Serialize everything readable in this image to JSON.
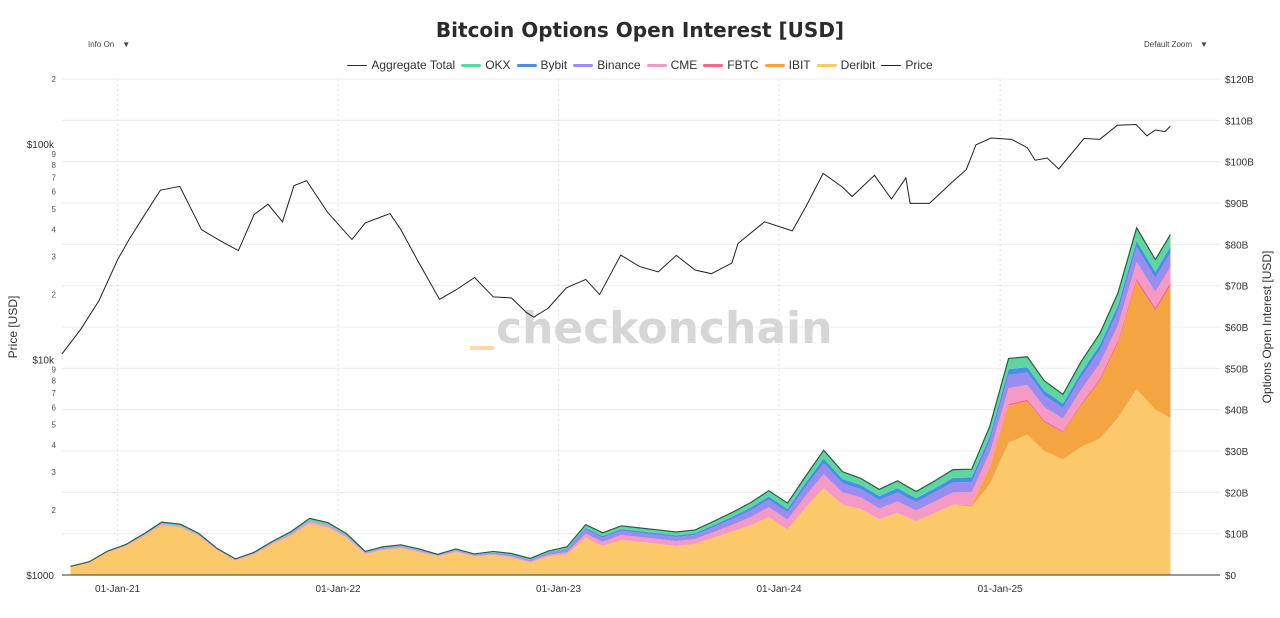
{
  "header": {
    "title": "Bitcoin Options Open Interest [USD]"
  },
  "controls": {
    "left": {
      "label": "Info On",
      "caret": "▼"
    },
    "right": {
      "label": "Default Zoom",
      "caret": "▼"
    }
  },
  "watermark": "checkonchain",
  "colors": {
    "aggregate": "#333333",
    "okx": "#5ed6a0",
    "bybit": "#4a8fe6",
    "binance": "#9b8cf0",
    "cme": "#f59ac4",
    "fbtc": "#f06a8a",
    "ibit": "#f5a442",
    "deribit": "#fcc96a",
    "price": "#222222"
  },
  "chart_data": {
    "type": "area",
    "title": "Bitcoin Options Open Interest [USD]",
    "ylabel_left": "Price [USD]",
    "ylabel_right": "Options Open Interest [USD]",
    "left_axis": {
      "scale": "log",
      "range": [
        1000,
        200000
      ],
      "major_ticks": [
        {
          "value": 1000,
          "label": "$1000"
        },
        {
          "value": 10000,
          "label": "$10k"
        },
        {
          "value": 100000,
          "label": "$100k"
        }
      ],
      "minor_ticks": [
        {
          "value": 2000,
          "label": "2"
        },
        {
          "value": 3000,
          "label": "3"
        },
        {
          "value": 4000,
          "label": "4"
        },
        {
          "value": 5000,
          "label": "5"
        },
        {
          "value": 6000,
          "label": "6"
        },
        {
          "value": 7000,
          "label": "7"
        },
        {
          "value": 8000,
          "label": "8"
        },
        {
          "value": 9000,
          "label": "9"
        },
        {
          "value": 20000,
          "label": "2"
        },
        {
          "value": 30000,
          "label": "3"
        },
        {
          "value": 40000,
          "label": "4"
        },
        {
          "value": 50000,
          "label": "5"
        },
        {
          "value": 60000,
          "label": "6"
        },
        {
          "value": 70000,
          "label": "7"
        },
        {
          "value": 80000,
          "label": "8"
        },
        {
          "value": 90000,
          "label": "9"
        },
        {
          "value": 200000,
          "label": "2"
        }
      ]
    },
    "right_axis": {
      "range": [
        0,
        120000000000
      ],
      "ticks": [
        {
          "value": 0,
          "label": "$0"
        },
        {
          "value": 10000000000,
          "label": "$10B"
        },
        {
          "value": 20000000000,
          "label": "$20B"
        },
        {
          "value": 30000000000,
          "label": "$30B"
        },
        {
          "value": 40000000000,
          "label": "$40B"
        },
        {
          "value": 50000000000,
          "label": "$50B"
        },
        {
          "value": 60000000000,
          "label": "$60B"
        },
        {
          "value": 70000000000,
          "label": "$70B"
        },
        {
          "value": 80000000000,
          "label": "$80B"
        },
        {
          "value": 90000000000,
          "label": "$90B"
        },
        {
          "value": 100000000000,
          "label": "$100B"
        },
        {
          "value": 110000000000,
          "label": "$110B"
        },
        {
          "value": 120000000000,
          "label": "$120B"
        }
      ]
    },
    "x_axis": {
      "range": [
        "2020-10-01",
        "2025-12-31"
      ],
      "ticks": [
        {
          "value": "2021-01-01",
          "label": "01-Jan-21"
        },
        {
          "value": "2022-01-01",
          "label": "01-Jan-22"
        },
        {
          "value": "2023-01-01",
          "label": "01-Jan-23"
        },
        {
          "value": "2024-01-01",
          "label": "01-Jan-24"
        },
        {
          "value": "2025-01-01",
          "label": "01-Jan-25"
        }
      ]
    },
    "legend": [
      {
        "key": "aggregate",
        "label": "Aggregate Total"
      },
      {
        "key": "okx",
        "label": "OKX"
      },
      {
        "key": "bybit",
        "label": "Bybit"
      },
      {
        "key": "binance",
        "label": "Binance"
      },
      {
        "key": "cme",
        "label": "CME"
      },
      {
        "key": "fbtc",
        "label": "FBTC"
      },
      {
        "key": "ibit",
        "label": "IBIT"
      },
      {
        "key": "deribit",
        "label": "Deribit"
      },
      {
        "key": "price",
        "label": "Price"
      }
    ],
    "oi_dates": [
      "2020-10-15",
      "2020-11-15",
      "2020-12-15",
      "2021-01-15",
      "2021-02-15",
      "2021-03-15",
      "2021-04-15",
      "2021-05-15",
      "2021-06-15",
      "2021-07-15",
      "2021-08-15",
      "2021-09-15",
      "2021-10-15",
      "2021-11-15",
      "2021-12-15",
      "2022-01-15",
      "2022-02-15",
      "2022-03-15",
      "2022-04-15",
      "2022-05-15",
      "2022-06-15",
      "2022-07-15",
      "2022-08-15",
      "2022-09-15",
      "2022-10-15",
      "2022-11-15",
      "2022-12-15",
      "2023-01-15",
      "2023-02-15",
      "2023-03-15",
      "2023-04-15",
      "2023-05-15",
      "2023-06-15",
      "2023-07-15",
      "2023-08-15",
      "2023-09-15",
      "2023-10-15",
      "2023-11-15",
      "2023-12-15",
      "2024-01-15",
      "2024-02-15",
      "2024-03-15",
      "2024-04-15",
      "2024-05-15",
      "2024-06-15",
      "2024-07-15",
      "2024-08-15",
      "2024-09-15",
      "2024-10-15",
      "2024-11-15",
      "2024-12-15",
      "2025-01-15",
      "2025-02-15",
      "2025-03-15",
      "2025-04-15",
      "2025-05-15",
      "2025-06-15",
      "2025-07-15",
      "2025-08-15",
      "2025-09-15",
      "2025-10-10"
    ],
    "series": [
      {
        "key": "deribit",
        "name": "Deribit",
        "values": [
          2.0,
          3.0,
          5.5,
          7.0,
          9.5,
          12.0,
          11.5,
          9.5,
          6.0,
          3.5,
          5.0,
          7.5,
          9.5,
          12.5,
          11.5,
          9.0,
          5.0,
          6.0,
          6.5,
          5.5,
          4.5,
          5.5,
          4.5,
          4.8,
          4.2,
          3.0,
          4.5,
          5.0,
          9.0,
          7.0,
          8.5,
          8.0,
          7.5,
          7.0,
          7.5,
          9.0,
          10.5,
          12.0,
          14.0,
          11.0,
          16.5,
          21.0,
          17.0,
          16.0,
          13.5,
          15.0,
          13.0,
          15.0,
          17.0,
          16.5,
          22.0,
          32.0,
          34.0,
          30.0,
          28.0,
          31.0,
          33.0,
          38.0,
          45.0,
          40.0,
          38.0
        ]
      },
      {
        "key": "ibit",
        "name": "IBIT",
        "values": [
          0,
          0,
          0,
          0,
          0,
          0,
          0,
          0,
          0,
          0,
          0,
          0,
          0,
          0,
          0,
          0,
          0,
          0,
          0,
          0,
          0,
          0,
          0,
          0,
          0,
          0,
          0,
          0,
          0,
          0,
          0,
          0,
          0,
          0,
          0,
          0,
          0,
          0,
          0,
          0,
          0,
          0,
          0,
          0,
          0,
          0,
          0,
          0,
          0,
          0.5,
          4.0,
          9.0,
          8.0,
          7.0,
          6.5,
          10.0,
          14.0,
          18.0,
          26.0,
          24.0,
          32.0
        ]
      },
      {
        "key": "fbtc",
        "name": "FBTC",
        "values": [
          0,
          0,
          0,
          0,
          0,
          0,
          0,
          0,
          0,
          0,
          0,
          0,
          0,
          0,
          0,
          0,
          0,
          0,
          0,
          0,
          0,
          0,
          0,
          0,
          0,
          0,
          0,
          0,
          0,
          0,
          0,
          0,
          0,
          0,
          0,
          0,
          0,
          0,
          0,
          0,
          0,
          0,
          0,
          0,
          0,
          0,
          0,
          0,
          0,
          0.1,
          0.2,
          0.4,
          0.4,
          0.4,
          0.3,
          0.4,
          0.5,
          0.6,
          0.7,
          0.7,
          0.8
        ]
      },
      {
        "key": "cme",
        "name": "CME",
        "values": [
          0.05,
          0.1,
          0.15,
          0.2,
          0.3,
          0.4,
          0.4,
          0.3,
          0.2,
          0.2,
          0.2,
          0.3,
          0.4,
          0.5,
          0.5,
          0.4,
          0.3,
          0.3,
          0.3,
          0.3,
          0.2,
          0.3,
          0.2,
          0.3,
          0.3,
          0.3,
          0.4,
          0.5,
          1.0,
          1.0,
          1.2,
          1.2,
          1.2,
          1.2,
          1.2,
          1.4,
          1.6,
          2.0,
          2.4,
          2.4,
          2.8,
          3.4,
          3.0,
          2.8,
          2.6,
          2.8,
          2.6,
          2.8,
          3.0,
          3.0,
          3.4,
          3.8,
          3.6,
          3.2,
          3.0,
          3.4,
          3.6,
          3.8,
          4.0,
          3.8,
          3.8
        ]
      },
      {
        "key": "binance",
        "name": "Binance",
        "values": [
          0,
          0,
          0,
          0,
          0,
          0,
          0,
          0,
          0,
          0,
          0.1,
          0.1,
          0.2,
          0.2,
          0.2,
          0.2,
          0.1,
          0.2,
          0.2,
          0.2,
          0.1,
          0.2,
          0.2,
          0.3,
          0.3,
          0.3,
          0.4,
          0.6,
          1.0,
          1.0,
          1.0,
          1.0,
          1.0,
          1.0,
          1.0,
          1.2,
          1.4,
          1.6,
          1.8,
          1.8,
          2.2,
          2.6,
          2.2,
          2.0,
          2.0,
          2.2,
          2.0,
          2.2,
          2.4,
          2.4,
          2.8,
          3.2,
          3.0,
          2.8,
          2.6,
          3.0,
          3.2,
          3.4,
          3.6,
          3.4,
          3.4
        ]
      },
      {
        "key": "bybit",
        "name": "Bybit",
        "values": [
          0,
          0,
          0,
          0,
          0,
          0,
          0,
          0,
          0,
          0,
          0,
          0,
          0,
          0,
          0,
          0,
          0,
          0,
          0,
          0,
          0,
          0,
          0,
          0,
          0.1,
          0.1,
          0.1,
          0.2,
          0.4,
          0.4,
          0.4,
          0.4,
          0.4,
          0.4,
          0.4,
          0.5,
          0.6,
          0.7,
          0.8,
          0.8,
          1.0,
          1.2,
          1.0,
          1.0,
          1.0,
          1.0,
          1.0,
          1.0,
          1.1,
          1.1,
          1.2,
          1.4,
          1.3,
          1.2,
          1.1,
          1.2,
          1.3,
          1.4,
          1.5,
          1.4,
          1.4
        ]
      },
      {
        "key": "okx",
        "name": "OKX",
        "values": [
          0.05,
          0.1,
          0.1,
          0.2,
          0.3,
          0.4,
          0.4,
          0.3,
          0.2,
          0.2,
          0.2,
          0.3,
          0.4,
          0.5,
          0.5,
          0.4,
          0.3,
          0.3,
          0.3,
          0.3,
          0.2,
          0.3,
          0.2,
          0.3,
          0.3,
          0.3,
          0.4,
          0.5,
          0.8,
          0.8,
          0.8,
          0.8,
          0.8,
          0.8,
          0.8,
          0.9,
          1.0,
          1.2,
          1.4,
          1.4,
          1.6,
          2.0,
          1.8,
          1.6,
          1.6,
          1.8,
          1.6,
          1.8,
          2.0,
          2.0,
          2.4,
          2.6,
          2.5,
          2.4,
          2.2,
          2.6,
          2.8,
          3.0,
          3.2,
          3.0,
          3.0
        ]
      }
    ],
    "oi_unit": "billion USD",
    "price": {
      "dates": [
        "2020-10-01",
        "2020-11-01",
        "2020-12-01",
        "2021-01-01",
        "2021-01-20",
        "2021-02-15",
        "2021-03-13",
        "2021-04-14",
        "2021-05-20",
        "2021-06-20",
        "2021-07-20",
        "2021-08-15",
        "2021-09-07",
        "2021-10-01",
        "2021-10-20",
        "2021-11-10",
        "2021-12-15",
        "2022-01-24",
        "2022-02-15",
        "2022-03-28",
        "2022-04-15",
        "2022-05-12",
        "2022-06-18",
        "2022-07-15",
        "2022-08-15",
        "2022-09-15",
        "2022-10-15",
        "2022-11-09",
        "2022-11-21",
        "2022-12-15",
        "2023-01-14",
        "2023-02-15",
        "2023-03-10",
        "2023-04-14",
        "2023-05-15",
        "2023-06-15",
        "2023-07-15",
        "2023-08-15",
        "2023-09-11",
        "2023-10-15",
        "2023-10-25",
        "2023-12-08",
        "2024-01-23",
        "2024-02-15",
        "2024-03-14",
        "2024-04-15",
        "2024-05-01",
        "2024-06-07",
        "2024-07-05",
        "2024-07-29",
        "2024-08-05",
        "2024-09-06",
        "2024-10-15",
        "2024-11-06",
        "2024-11-22",
        "2024-12-17",
        "2025-01-20",
        "2025-02-15",
        "2025-02-28",
        "2025-03-20",
        "2025-04-08",
        "2025-05-20",
        "2025-06-15",
        "2025-07-14",
        "2025-08-14",
        "2025-09-01",
        "2025-09-15",
        "2025-10-01",
        "2025-10-10"
      ],
      "values": [
        10600,
        13800,
        18700,
        29000,
        36000,
        47000,
        61000,
        63500,
        40000,
        35500,
        32000,
        47000,
        52500,
        43500,
        64000,
        67500,
        48000,
        36000,
        43000,
        47500,
        40000,
        29000,
        19000,
        21000,
        24000,
        19500,
        19300,
        16500,
        15700,
        17300,
        21500,
        23500,
        20000,
        30500,
        27000,
        25500,
        30400,
        26000,
        25000,
        28000,
        34500,
        43500,
        39500,
        51500,
        73000,
        63000,
        57000,
        71500,
        55500,
        69500,
        53000,
        53000,
        67000,
        76000,
        99000,
        106500,
        105000,
        96000,
        84000,
        86000,
        76500,
        106000,
        105000,
        122000,
        123000,
        109000,
        116000,
        114000,
        121000
      ]
    }
  }
}
